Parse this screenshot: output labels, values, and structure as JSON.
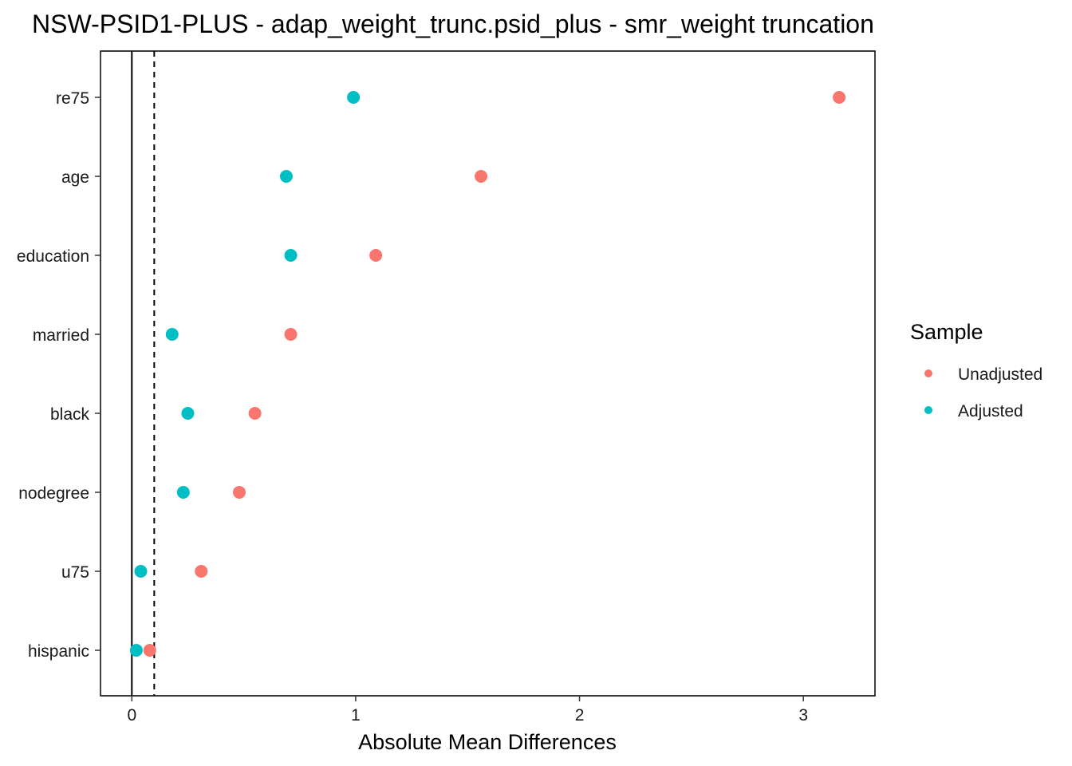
{
  "chart_data": {
    "type": "scatter",
    "title": "NSW-PSID1-PLUS - adap_weight_trunc.psid_plus - smr_weight truncation",
    "xlabel": "Absolute Mean Differences",
    "ylabel": "",
    "xlim": [
      -0.14,
      3.32
    ],
    "xticks": [
      0,
      1,
      2,
      3
    ],
    "categories": [
      "re75",
      "age",
      "education",
      "married",
      "black",
      "nodegree",
      "u75",
      "hispanic"
    ],
    "reference_lines": [
      {
        "x": 0,
        "style": "solid"
      },
      {
        "x": 0.1,
        "style": "dashed"
      }
    ],
    "legend_title": "Sample",
    "legend_position": "right",
    "series": [
      {
        "name": "Unadjusted",
        "color": "#F8766D",
        "values": [
          3.16,
          1.56,
          1.09,
          0.71,
          0.55,
          0.48,
          0.31,
          0.08
        ]
      },
      {
        "name": "Adjusted",
        "color": "#00BFC4",
        "values": [
          0.99,
          0.69,
          0.71,
          0.18,
          0.25,
          0.23,
          0.04,
          0.02
        ]
      }
    ]
  }
}
